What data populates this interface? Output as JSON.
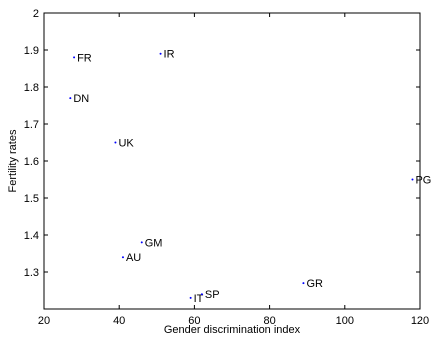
{
  "chart_data": {
    "type": "scatter",
    "title": "",
    "xlabel": "Gender discrimination index",
    "ylabel": "Fertility rates",
    "xlim": [
      20,
      120
    ],
    "ylim": [
      1.2,
      2.0
    ],
    "xticks": [
      "20",
      "40",
      "60",
      "80",
      "100",
      "120"
    ],
    "yticks": [
      "1.3",
      "1.4",
      "1.5",
      "1.6",
      "1.7",
      "1.8",
      "1.9",
      "2"
    ],
    "grid": false,
    "marker_color": "#0000ff",
    "points": [
      {
        "label": "FR",
        "x": 28,
        "y": 1.88
      },
      {
        "label": "IR",
        "x": 51,
        "y": 1.89
      },
      {
        "label": "DN",
        "x": 27,
        "y": 1.77
      },
      {
        "label": "UK",
        "x": 39,
        "y": 1.65
      },
      {
        "label": "PG",
        "x": 118,
        "y": 1.55
      },
      {
        "label": "GM",
        "x": 46,
        "y": 1.38
      },
      {
        "label": "AU",
        "x": 41,
        "y": 1.34
      },
      {
        "label": "GR",
        "x": 89,
        "y": 1.27
      },
      {
        "label": "IT",
        "x": 59,
        "y": 1.23
      },
      {
        "label": "SP",
        "x": 62,
        "y": 1.24
      }
    ]
  }
}
